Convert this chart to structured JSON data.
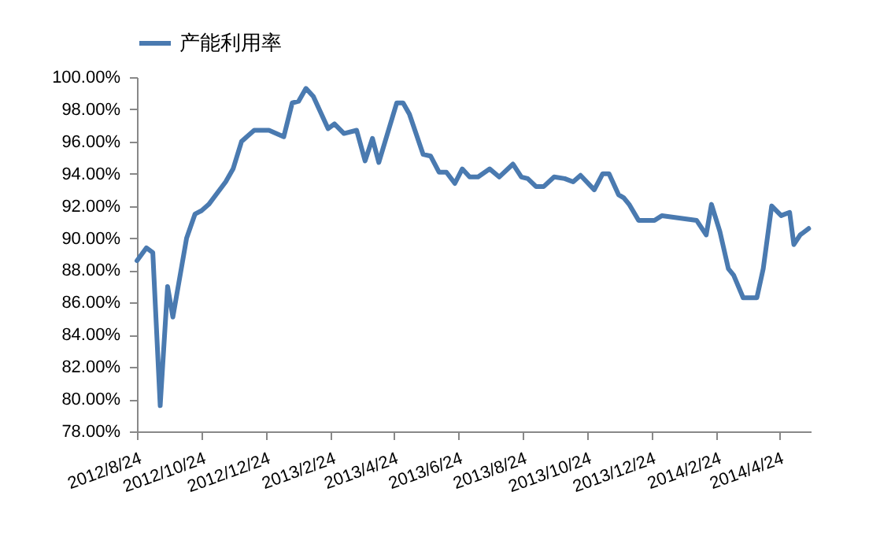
{
  "chart_data": {
    "type": "line",
    "legend": "top",
    "line_style": "solid",
    "marker": "none",
    "grid": false,
    "x": [
      "2012-08-24",
      "2012-09-02",
      "2012-09-08",
      "2012-09-15",
      "2012-09-22",
      "2012-09-27",
      "2012-10-10",
      "2012-10-18",
      "2012-10-24",
      "2012-10-31",
      "2012-11-16",
      "2012-11-23",
      "2012-12-01",
      "2012-12-06",
      "2012-12-13",
      "2012-12-19",
      "2012-12-27",
      "2013-01-10",
      "2013-01-18",
      "2013-01-24",
      "2013-01-31",
      "2013-02-07",
      "2013-02-21",
      "2013-02-27",
      "2013-03-08",
      "2013-03-20",
      "2013-03-28",
      "2013-04-04",
      "2013-04-10",
      "2013-04-27",
      "2013-05-03",
      "2013-05-09",
      "2013-05-22",
      "2013-05-29",
      "2013-06-06",
      "2013-06-13",
      "2013-06-21",
      "2013-06-28",
      "2013-07-05",
      "2013-07-13",
      "2013-07-24",
      "2013-08-02",
      "2013-08-15",
      "2013-08-23",
      "2013-08-29",
      "2013-09-06",
      "2013-09-13",
      "2013-09-23",
      "2013-10-03",
      "2013-10-11",
      "2013-10-18",
      "2013-10-31",
      "2013-11-08",
      "2013-11-14",
      "2013-11-23",
      "2013-11-28",
      "2013-12-03",
      "2013-12-12",
      "2013-12-27",
      "2014-01-03",
      "2014-02-05",
      "2014-02-14",
      "2014-02-19",
      "2014-02-27",
      "2014-03-07",
      "2014-03-12",
      "2014-03-21",
      "2014-04-03",
      "2014-04-09",
      "2014-04-17",
      "2014-04-26",
      "2014-05-04",
      "2014-05-08",
      "2014-05-14",
      "2014-05-22"
    ],
    "series": [
      {
        "name": "产能利用率",
        "color": "#4a7ab0",
        "values": [
          88.6,
          89.4,
          89.1,
          79.6,
          87.0,
          85.1,
          90.0,
          91.5,
          91.7,
          92.1,
          93.5,
          94.3,
          96.0,
          96.3,
          96.7,
          96.7,
          96.7,
          96.3,
          98.4,
          98.5,
          99.3,
          98.8,
          96.8,
          97.1,
          96.5,
          96.7,
          94.8,
          96.2,
          94.7,
          98.4,
          98.4,
          97.7,
          95.2,
          95.1,
          94.1,
          94.1,
          93.4,
          94.3,
          93.8,
          93.8,
          94.3,
          93.8,
          94.6,
          93.8,
          93.7,
          93.2,
          93.2,
          93.8,
          93.7,
          93.5,
          93.9,
          93.0,
          94.0,
          94.0,
          92.7,
          92.5,
          92.1,
          91.1,
          91.1,
          91.4,
          91.1,
          90.2,
          92.1,
          90.4,
          88.1,
          87.7,
          86.3,
          86.3,
          88.1,
          92.0,
          91.4,
          91.6,
          89.6,
          90.2,
          90.6
        ]
      }
    ],
    "xlim": [
      "2012-08-24",
      "2014-05-24"
    ],
    "xticks": [
      {
        "value": "2012-08-24",
        "label": "2012/8/24"
      },
      {
        "value": "2012-10-24",
        "label": "2012/10/24"
      },
      {
        "value": "2012-12-24",
        "label": "2012/12/24"
      },
      {
        "value": "2013-02-24",
        "label": "2013/2/24"
      },
      {
        "value": "2013-04-24",
        "label": "2013/4/24"
      },
      {
        "value": "2013-06-24",
        "label": "2013/6/24"
      },
      {
        "value": "2013-08-24",
        "label": "2013/8/24"
      },
      {
        "value": "2013-10-24",
        "label": "2013/10/24"
      },
      {
        "value": "2013-12-24",
        "label": "2013/12/24"
      },
      {
        "value": "2014-02-24",
        "label": "2014/2/24"
      },
      {
        "value": "2014-04-24",
        "label": "2014/4/24"
      }
    ],
    "ylim": [
      78,
      100
    ],
    "yticks": [
      {
        "value": 78,
        "label": "78.00%"
      },
      {
        "value": 80,
        "label": "80.00%"
      },
      {
        "value": 82,
        "label": "82.00%"
      },
      {
        "value": 84,
        "label": "84.00%"
      },
      {
        "value": 86,
        "label": "86.00%"
      },
      {
        "value": 88,
        "label": "88.00%"
      },
      {
        "value": 90,
        "label": "90.00%"
      },
      {
        "value": 92,
        "label": "92.00%"
      },
      {
        "value": 94,
        "label": "94.00%"
      },
      {
        "value": 96,
        "label": "96.00%"
      },
      {
        "value": 98,
        "label": "98.00%"
      },
      {
        "value": 100,
        "label": "100.00%"
      }
    ]
  }
}
